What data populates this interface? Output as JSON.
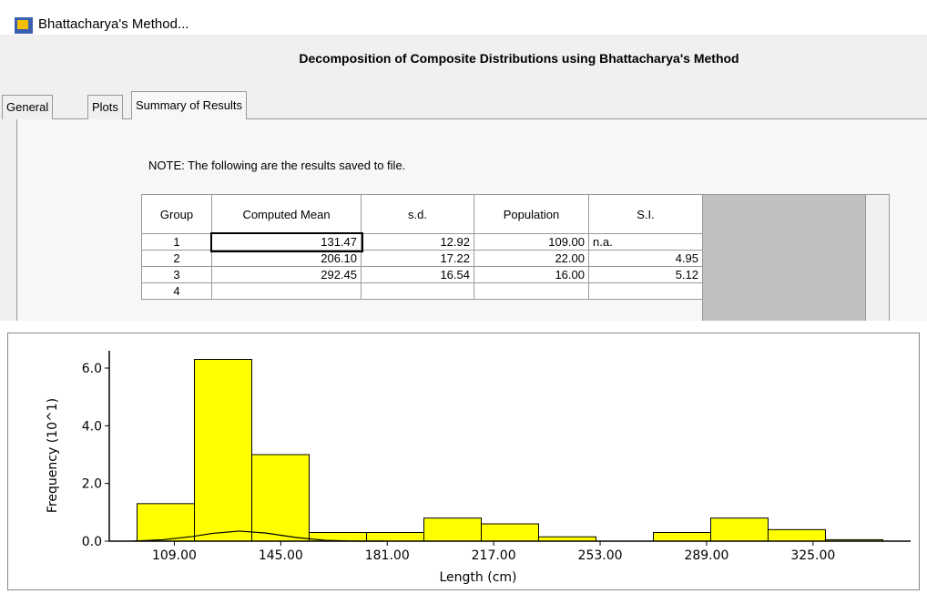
{
  "window": {
    "title": "Bhattacharya's Method..."
  },
  "header": {
    "title": "Decomposition of Composite Distributions using Bhattacharya's Method"
  },
  "tabs": [
    "General",
    "Plots",
    "Summary of Results"
  ],
  "note": "NOTE: The following are the results saved to file.",
  "table": {
    "columns": [
      "Group",
      "Computed Mean",
      "s.d.",
      "Population",
      "S.I."
    ],
    "rows": [
      [
        "1",
        "131.47",
        "12.92",
        "109.00",
        "n.a."
      ],
      [
        "2",
        "206.10",
        "17.22",
        "22.00",
        "4.95"
      ],
      [
        "3",
        "292.45",
        "16.54",
        "16.00",
        "5.12"
      ],
      [
        "4",
        "",
        "",
        "",
        ""
      ]
    ]
  },
  "chart_data": {
    "type": "histogram",
    "x_label": "Length (cm)",
    "y_label": "Frequency (10^1)",
    "color": "#ffff00",
    "bins": [
      96.4,
      115.8,
      135.2,
      154.6,
      174,
      193.4,
      212.8,
      232.2,
      251.6,
      271,
      290.4,
      309.8,
      329.2,
      348.6
    ],
    "counts": [
      1.3,
      6.3,
      3.0,
      0.3,
      0.3,
      0.8,
      0.6,
      0.15,
      0,
      0.3,
      0.8,
      0.4,
      0.05
    ],
    "curve": {
      "x": [
        95,
        105,
        115,
        122,
        131,
        140,
        150,
        160,
        170,
        180
      ],
      "values": [
        0.0,
        0.05,
        0.16,
        0.27,
        0.35,
        0.28,
        0.13,
        0.03,
        0.0,
        0.0
      ]
    },
    "xlim": [
      87,
      358
    ],
    "ylim": [
      0,
      6.6
    ],
    "xticks": [
      {
        "value": 109,
        "label": "109.00"
      },
      {
        "value": 145,
        "label": "145.00"
      },
      {
        "value": 181,
        "label": "181.00"
      },
      {
        "value": 217,
        "label": "217.00"
      },
      {
        "value": 253,
        "label": "253.00"
      },
      {
        "value": 289,
        "label": "289.00"
      },
      {
        "value": 325,
        "label": "325.00"
      }
    ],
    "yticks": [
      {
        "value": 0,
        "label": "0.0"
      },
      {
        "value": 2,
        "label": "2.0"
      },
      {
        "value": 4,
        "label": "4.0"
      },
      {
        "value": 6,
        "label": "6.0"
      }
    ]
  }
}
